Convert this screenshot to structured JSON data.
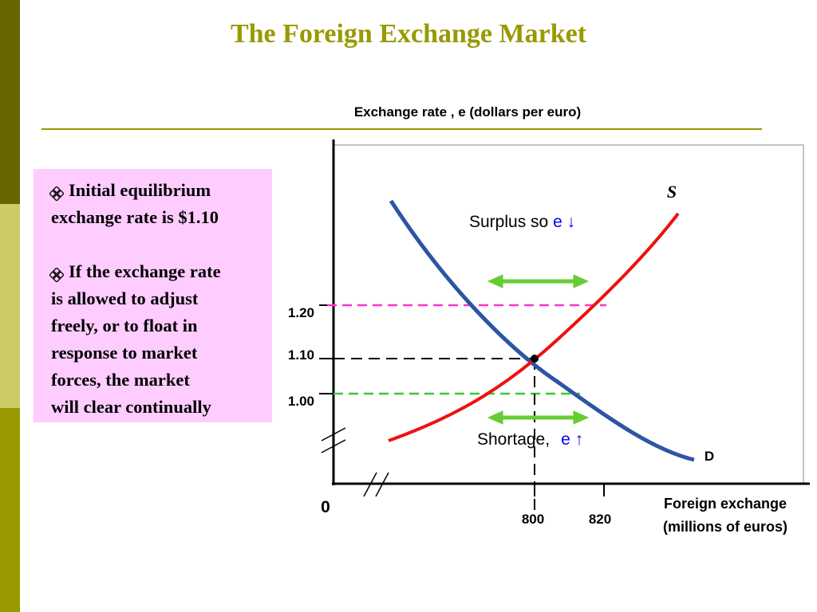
{
  "title": "The Foreign Exchange Market",
  "axis_title": "Exchange rate , e (dollars per euro)",
  "bullets": [
    {
      "lines": [
        "Initial equilibrium",
        "exchange rate is $1.10"
      ]
    },
    {
      "lines": [
        "If the exchange rate",
        "is allowed to adjust",
        "freely, or to float in",
        "response to market",
        "forces, the market",
        "will clear continually"
      ]
    }
  ],
  "diagram": {
    "y_labels": [
      "1.20",
      "1.10",
      "1.00"
    ],
    "x_labels": [
      "800",
      "820"
    ],
    "origin": "0",
    "x_axis_label": [
      "Foreign exchange",
      "(millions of euros)"
    ],
    "supply_label": "S",
    "demand_label": "D",
    "surplus": {
      "text": "Surplus so",
      "symbol": "e ↓"
    },
    "shortage": {
      "text": "Shortage,",
      "symbol": "e ↑"
    }
  }
}
